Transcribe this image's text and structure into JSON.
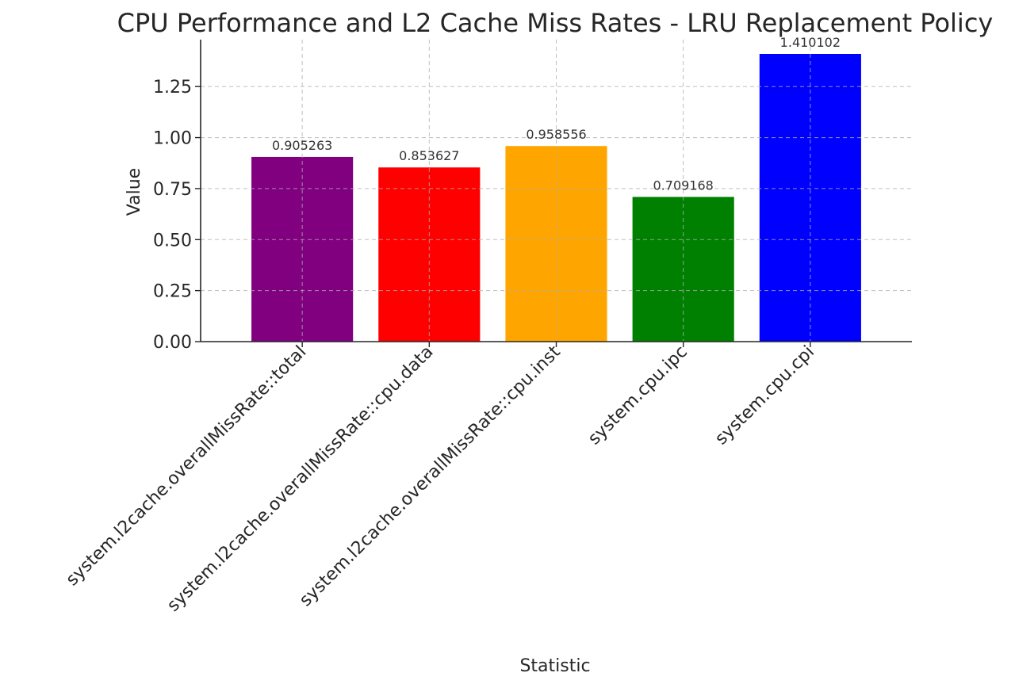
{
  "chart_data": {
    "type": "bar",
    "title": "CPU Performance and L2 Cache Miss Rates - LRU Replacement Policy",
    "xlabel": "Statistic",
    "ylabel": "Value",
    "categories": [
      "system.l2cache.overallMissRate::total",
      "system.l2cache.overallMissRate::cpu.data",
      "system.l2cache.overallMissRate::cpu.inst",
      "system.cpu.ipc",
      "system.cpu.cpi"
    ],
    "values": [
      0.905263,
      0.853627,
      0.958556,
      0.709168,
      1.410102
    ],
    "value_labels": [
      "0.905263",
      "0.853627",
      "0.958556",
      "0.709168",
      "1.410102"
    ],
    "colors": [
      "#800080",
      "#ff0000",
      "#ffa500",
      "#008000",
      "#0000ff"
    ],
    "ylim": [
      0,
      1.48
    ],
    "yticks": [
      0,
      0.25,
      0.5,
      0.75,
      1.0,
      1.25
    ],
    "ytick_labels": [
      "0.00",
      "0.25",
      "0.50",
      "0.75",
      "1.00",
      "1.25"
    ],
    "grid": true,
    "legend": false
  }
}
